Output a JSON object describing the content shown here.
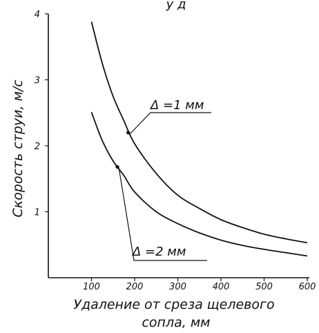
{
  "chart_data": {
    "type": "line",
    "xlabel_line1": "Удаление от среза щелевого",
    "xlabel_line2": "сопла, мм",
    "ylabel": "Скорость струи, м/с",
    "top_caption": "у д",
    "xlim": [
      0,
      600
    ],
    "ylim": [
      0,
      4
    ],
    "xticks": [
      100,
      200,
      300,
      400,
      500,
      600
    ],
    "yticks": [
      1,
      2,
      3,
      4
    ],
    "grid": false,
    "series": [
      {
        "label": "Δ =1 мм",
        "x": [
          100,
          125,
          150,
          175,
          200,
          250,
          300,
          350,
          400,
          450,
          500,
          550,
          600
        ],
        "y": [
          3.88,
          3.25,
          2.75,
          2.38,
          2.03,
          1.58,
          1.25,
          1.05,
          0.88,
          0.76,
          0.66,
          0.59,
          0.53
        ],
        "marker_at": [
          185,
          2.2
        ]
      },
      {
        "label": "Δ =2 мм",
        "x": [
          100,
          125,
          150,
          175,
          200,
          250,
          300,
          350,
          400,
          450,
          500,
          550,
          600
        ],
        "y": [
          2.51,
          2.08,
          1.77,
          1.55,
          1.3,
          1.0,
          0.82,
          0.68,
          0.57,
          0.49,
          0.43,
          0.38,
          0.33
        ],
        "marker_at": [
          160,
          1.68
        ]
      }
    ]
  }
}
